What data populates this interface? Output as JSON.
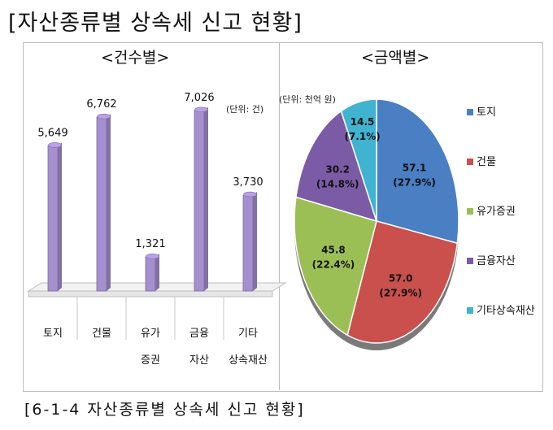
{
  "title": "[자산종류별 상속세 신고 현황]",
  "caption": "[6-1-4 자산종류별 상속세 신고 현황]",
  "chart_data": [
    {
      "type": "bar",
      "title": "<건수별>",
      "unit_label": "(단위: 건)",
      "categories": [
        [
          "토지"
        ],
        [
          "건물"
        ],
        [
          "유가",
          "증권"
        ],
        [
          "금융",
          "자산"
        ],
        [
          "기타",
          "상속재산"
        ]
      ],
      "values": [
        5649,
        6762,
        1321,
        7026,
        3730
      ],
      "value_labels": [
        "5,649",
        "6,762",
        "1,321",
        "7,026",
        "3,730"
      ],
      "ylim": [
        0,
        8000
      ],
      "color": "#a58fcf"
    },
    {
      "type": "pie",
      "title": "<금액별>",
      "unit_label": "(단위: 천억 원)",
      "slices": [
        {
          "label": "토지",
          "value": 57.1,
          "value_label": "57.1",
          "pct_label": "(27.9%)",
          "color": "#4a7fc4"
        },
        {
          "label": "건물",
          "value": 57.0,
          "value_label": "57.0",
          "pct_label": "(27.9%)",
          "color": "#c9504d"
        },
        {
          "label": "유가증권",
          "value": 45.8,
          "value_label": "45.8",
          "pct_label": "(22.4%)",
          "color": "#9cbf55"
        },
        {
          "label": "금융자산",
          "value": 30.2,
          "value_label": "30.2",
          "pct_label": "(14.8%)",
          "color": "#7c5ba6"
        },
        {
          "label": "기타상속재산",
          "value": 14.5,
          "value_label": "14.5",
          "pct_label": "(7.1%)",
          "color": "#3fb3cf"
        }
      ]
    }
  ]
}
